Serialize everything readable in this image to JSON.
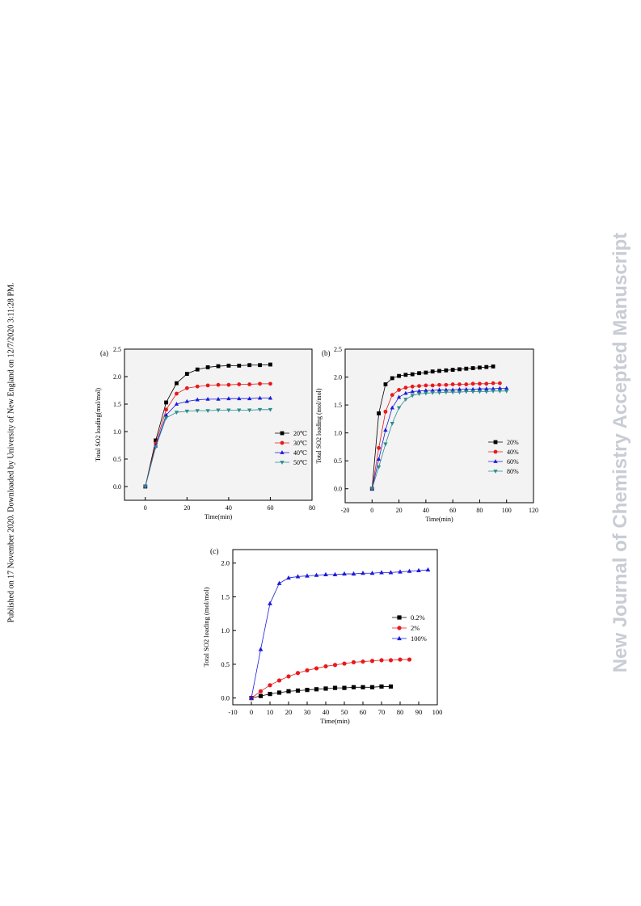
{
  "side_note": "Published on 17 November 2020. Downloaded by University of New England on 12/7/2020 3:11:28 PM.",
  "watermark": "New Journal of Chemistry Accepted Manuscript",
  "chart_data": [
    {
      "type": "line",
      "panel_label": "(a)",
      "xlabel": "Time(min)",
      "ylabel": "Total SO2 loading(mol/mol)",
      "xlim": [
        -10,
        80
      ],
      "ylim": [
        -0.25,
        2.5
      ],
      "xticks": [
        "0",
        "20",
        "40",
        "60",
        "80"
      ],
      "yticks": [
        "0.0",
        "0.5",
        "1.0",
        "1.5",
        "2.0",
        "2.5"
      ],
      "legend_position": "center-right",
      "x": [
        0,
        5,
        10,
        15,
        20,
        25,
        30,
        35,
        40,
        45,
        50,
        55,
        60
      ],
      "series": [
        {
          "name": "20℃",
          "marker": "square",
          "color": "#000000",
          "values": [
            0,
            0.84,
            1.53,
            1.88,
            2.05,
            2.13,
            2.17,
            2.19,
            2.2,
            2.2,
            2.21,
            2.21,
            2.22
          ]
        },
        {
          "name": "30℃",
          "marker": "circle",
          "color": "#e8191b",
          "values": [
            0,
            0.78,
            1.4,
            1.69,
            1.79,
            1.82,
            1.84,
            1.85,
            1.85,
            1.86,
            1.86,
            1.87,
            1.87
          ]
        },
        {
          "name": "40℃",
          "marker": "triangle-up",
          "color": "#1a1adb",
          "values": [
            0,
            0.74,
            1.3,
            1.5,
            1.55,
            1.58,
            1.59,
            1.59,
            1.6,
            1.6,
            1.6,
            1.61,
            1.61
          ]
        },
        {
          "name": "50℃",
          "marker": "triangle-down",
          "color": "#2b8c8c",
          "values": [
            0,
            0.72,
            1.25,
            1.35,
            1.37,
            1.38,
            1.38,
            1.39,
            1.39,
            1.39,
            1.39,
            1.4,
            1.4
          ]
        }
      ]
    },
    {
      "type": "line",
      "panel_label": "(b)",
      "xlabel": "Time(min)",
      "ylabel": "Total SO2 loading (mol/mol)",
      "xlim": [
        -20,
        120
      ],
      "ylim": [
        -0.25,
        2.5
      ],
      "xticks": [
        "-20",
        "0",
        "20",
        "40",
        "60",
        "80",
        "100",
        "120"
      ],
      "yticks": [
        "0.0",
        "0.5",
        "1.0",
        "1.5",
        "2.0",
        "2.5"
      ],
      "legend_position": "lower-right",
      "series": [
        {
          "name": "20%",
          "marker": "square",
          "color": "#000000",
          "x": [
            0,
            5,
            10,
            15,
            20,
            25,
            30,
            35,
            40,
            45,
            50,
            55,
            60,
            65,
            70,
            75,
            80,
            85,
            90
          ],
          "values": [
            0,
            1.35,
            1.87,
            1.98,
            2.02,
            2.04,
            2.05,
            2.07,
            2.08,
            2.1,
            2.11,
            2.12,
            2.13,
            2.14,
            2.15,
            2.16,
            2.17,
            2.18,
            2.19
          ]
        },
        {
          "name": "40%",
          "marker": "circle",
          "color": "#e8191b",
          "x": [
            0,
            5,
            10,
            15,
            20,
            25,
            30,
            35,
            40,
            45,
            50,
            55,
            60,
            65,
            70,
            75,
            80,
            85,
            90,
            95
          ],
          "values": [
            0,
            0.73,
            1.38,
            1.68,
            1.77,
            1.81,
            1.83,
            1.84,
            1.85,
            1.85,
            1.86,
            1.86,
            1.87,
            1.87,
            1.87,
            1.88,
            1.88,
            1.88,
            1.89,
            1.89
          ]
        },
        {
          "name": "60%",
          "marker": "triangle-up",
          "color": "#1a1adb",
          "x": [
            0,
            5,
            10,
            15,
            20,
            25,
            30,
            35,
            40,
            45,
            50,
            55,
            60,
            65,
            70,
            75,
            80,
            85,
            90,
            95,
            100
          ],
          "values": [
            0,
            0.53,
            1.05,
            1.45,
            1.64,
            1.71,
            1.74,
            1.75,
            1.76,
            1.76,
            1.77,
            1.77,
            1.77,
            1.78,
            1.78,
            1.78,
            1.79,
            1.79,
            1.79,
            1.8,
            1.8
          ]
        },
        {
          "name": "80%",
          "marker": "triangle-down",
          "color": "#2b8c8c",
          "x": [
            0,
            5,
            10,
            15,
            20,
            25,
            30,
            35,
            40,
            45,
            50,
            55,
            60,
            65,
            70,
            75,
            80,
            85,
            90,
            95,
            100
          ],
          "values": [
            0,
            0.39,
            0.8,
            1.17,
            1.45,
            1.6,
            1.67,
            1.7,
            1.71,
            1.72,
            1.72,
            1.73,
            1.73,
            1.73,
            1.74,
            1.74,
            1.74,
            1.74,
            1.75,
            1.75,
            1.75
          ]
        }
      ]
    },
    {
      "type": "line",
      "panel_label": "(c)",
      "xlabel": "Time(min)",
      "ylabel": "Total SO2 loading (mol/mol)",
      "xlim": [
        -10,
        100
      ],
      "ylim": [
        -0.1,
        2.2
      ],
      "xticks": [
        "-10",
        "0",
        "10",
        "20",
        "30",
        "40",
        "50",
        "60",
        "70",
        "80",
        "90",
        "100"
      ],
      "yticks": [
        "0.0",
        "0.5",
        "1.0",
        "1.5",
        "2.0"
      ],
      "legend_position": "center-right",
      "series": [
        {
          "name": "0.2%",
          "marker": "square",
          "color": "#000000",
          "x": [
            0,
            5,
            10,
            15,
            20,
            25,
            30,
            35,
            40,
            45,
            50,
            55,
            60,
            65,
            70,
            75
          ],
          "values": [
            0,
            0.03,
            0.06,
            0.08,
            0.1,
            0.11,
            0.12,
            0.13,
            0.14,
            0.15,
            0.15,
            0.16,
            0.16,
            0.16,
            0.17,
            0.17
          ]
        },
        {
          "name": "2%",
          "marker": "circle",
          "color": "#e8191b",
          "x": [
            0,
            5,
            10,
            15,
            20,
            25,
            30,
            35,
            40,
            45,
            50,
            55,
            60,
            65,
            70,
            75,
            80,
            85
          ],
          "values": [
            0,
            0.1,
            0.19,
            0.26,
            0.32,
            0.37,
            0.41,
            0.44,
            0.47,
            0.49,
            0.51,
            0.53,
            0.54,
            0.55,
            0.56,
            0.56,
            0.57,
            0.57
          ]
        },
        {
          "name": "100%",
          "marker": "triangle-up",
          "color": "#1a1adb",
          "x": [
            0,
            5,
            10,
            15,
            20,
            25,
            30,
            35,
            40,
            45,
            50,
            55,
            60,
            65,
            70,
            75,
            80,
            85,
            90,
            95
          ],
          "values": [
            0,
            0.72,
            1.4,
            1.7,
            1.78,
            1.8,
            1.81,
            1.82,
            1.83,
            1.83,
            1.84,
            1.84,
            1.85,
            1.85,
            1.86,
            1.86,
            1.87,
            1.88,
            1.89,
            1.9
          ]
        }
      ]
    }
  ]
}
